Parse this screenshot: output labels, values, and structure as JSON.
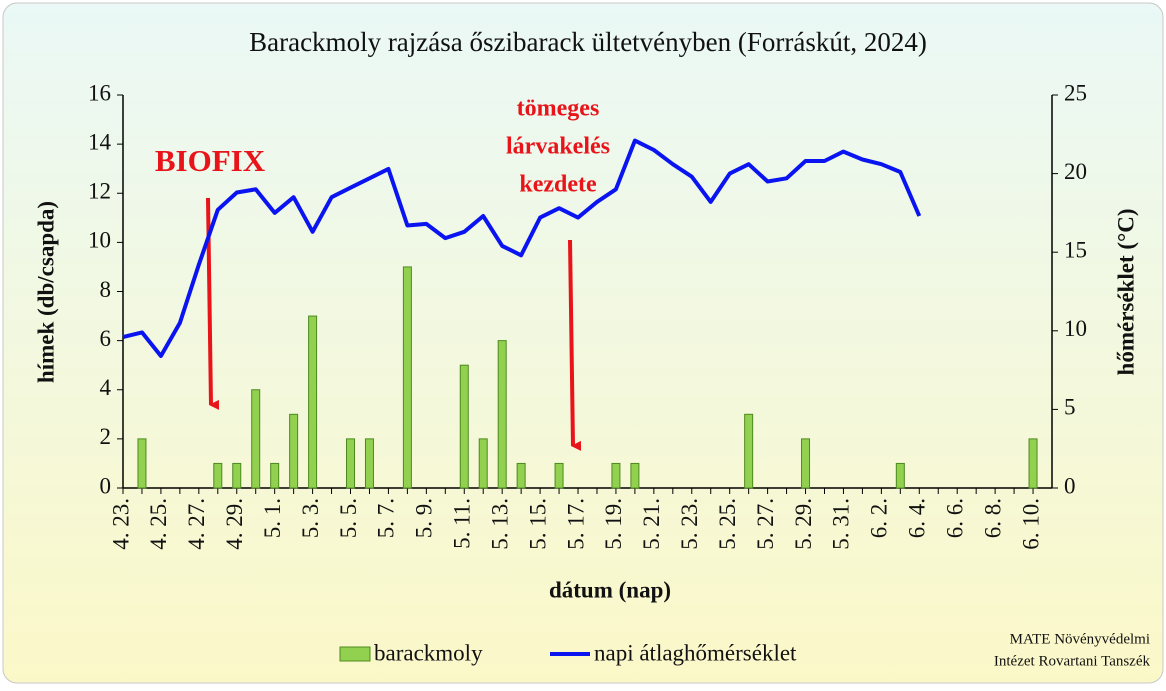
{
  "chart_data": {
    "type": "bar+line",
    "title": "Barackmoly rajzása őszibarack ültetvényben (Forráskút, 2024)",
    "xlabel": "dátum (nap)",
    "ylabel": "hímek (db/csapda)",
    "y2label": "hőmérséklet (°C)",
    "categories": [
      "4. 23.",
      null,
      "4. 25.",
      null,
      "4. 27.",
      null,
      "4. 29.",
      null,
      "5. 1.",
      null,
      "5. 3.",
      null,
      "5. 5.",
      null,
      "5. 7.",
      null,
      "5. 9.",
      null,
      "5. 11.",
      null,
      "5. 13.",
      null,
      "5. 15.",
      null,
      "5. 17.",
      null,
      "5. 19.",
      null,
      "5. 21.",
      null,
      "5. 23.",
      null,
      "5. 25.",
      null,
      "5. 27.",
      null,
      "5. 29.",
      null,
      "5. 31.",
      null,
      "6. 2.",
      null,
      "6. 4.",
      null,
      "6. 6.",
      null,
      "6. 8.",
      null,
      "6. 10."
    ],
    "series": [
      {
        "name": "barackmoly",
        "type": "bar",
        "color": "#92d050",
        "values": [
          0,
          2,
          0,
          0,
          0,
          1,
          1,
          4,
          1,
          3,
          7,
          0,
          2,
          2,
          0,
          9,
          0,
          0,
          5,
          2,
          6,
          1,
          0,
          1,
          0,
          0,
          1,
          1,
          0,
          0,
          0,
          0,
          0,
          3,
          0,
          0,
          2,
          0,
          0,
          0,
          0,
          1,
          0,
          0,
          0,
          0,
          0,
          0,
          2
        ]
      },
      {
        "name": "napi átlaghőmérséklet",
        "type": "line",
        "axis": "y2",
        "color": "#0a14f0",
        "values": [
          9.6,
          9.9,
          8.4,
          10.5,
          14.2,
          17.7,
          18.8,
          19.0,
          17.5,
          18.5,
          16.3,
          18.5,
          19.1,
          19.7,
          20.3,
          16.7,
          16.8,
          15.9,
          16.3,
          17.3,
          15.4,
          14.8,
          17.2,
          17.8,
          17.2,
          18.2,
          19.0,
          22.1,
          21.5,
          20.6,
          19.8,
          18.2,
          20.0,
          20.6,
          19.5,
          19.7,
          20.8,
          20.8,
          21.4,
          20.9,
          20.6,
          20.1,
          17.3,
          null,
          null,
          null,
          null,
          null,
          null
        ]
      }
    ],
    "ylim": [
      0,
      16
    ],
    "yticks": [
      0,
      2,
      4,
      6,
      8,
      10,
      12,
      14,
      16
    ],
    "y2lim": [
      0,
      25
    ],
    "y2ticks": [
      0,
      5,
      10,
      15,
      20,
      25
    ],
    "annotations": [
      "BIOFIX",
      "tömeges",
      "lárvakelés",
      "kezdete"
    ],
    "source": [
      "MATE Növényvédelmi",
      "Intézet Rovartani Tanszék"
    ]
  }
}
